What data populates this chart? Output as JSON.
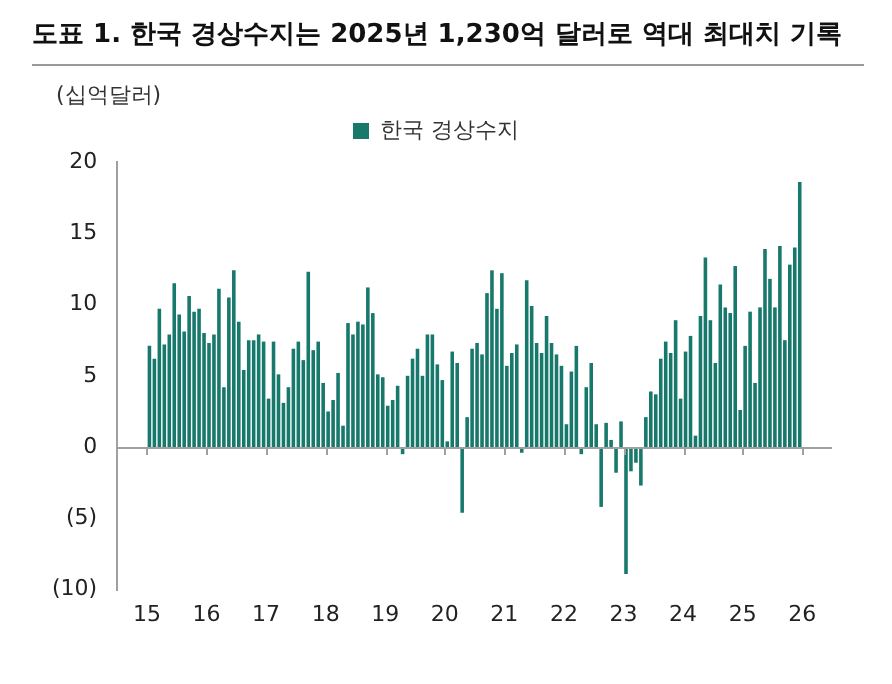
{
  "chart_data": {
    "type": "bar",
    "title": "도표 1. 한국 경상수지는 2025년 1,230억 달러로 역대 최대치 기록",
    "ylabel": "(십억달러)",
    "x": [
      "2015-01",
      "2015-02",
      "2015-03",
      "2015-04",
      "2015-05",
      "2015-06",
      "2015-07",
      "2015-08",
      "2015-09",
      "2015-10",
      "2015-11",
      "2015-12",
      "2016-01",
      "2016-02",
      "2016-03",
      "2016-04",
      "2016-05",
      "2016-06",
      "2016-07",
      "2016-08",
      "2016-09",
      "2016-10",
      "2016-11",
      "2016-12",
      "2017-01",
      "2017-02",
      "2017-03",
      "2017-04",
      "2017-05",
      "2017-06",
      "2017-07",
      "2017-08",
      "2017-09",
      "2017-10",
      "2017-11",
      "2017-12",
      "2018-01",
      "2018-02",
      "2018-03",
      "2018-04",
      "2018-05",
      "2018-06",
      "2018-07",
      "2018-08",
      "2018-09",
      "2018-10",
      "2018-11",
      "2018-12",
      "2019-01",
      "2019-02",
      "2019-03",
      "2019-04",
      "2019-05",
      "2019-06",
      "2019-07",
      "2019-08",
      "2019-09",
      "2019-10",
      "2019-11",
      "2019-12",
      "2020-01",
      "2020-02",
      "2020-03",
      "2020-04",
      "2020-05",
      "2020-06",
      "2020-07",
      "2020-08",
      "2020-09",
      "2020-10",
      "2020-11",
      "2020-12",
      "2021-01",
      "2021-02",
      "2021-03",
      "2021-04",
      "2021-05",
      "2021-06",
      "2021-07",
      "2021-08",
      "2021-09",
      "2021-10",
      "2021-11",
      "2021-12",
      "2022-01",
      "2022-02",
      "2022-03",
      "2022-04",
      "2022-05",
      "2022-06",
      "2022-07",
      "2022-08",
      "2022-09",
      "2022-10",
      "2022-11",
      "2022-12",
      "2023-01",
      "2023-02",
      "2023-03",
      "2023-04",
      "2023-05",
      "2023-06",
      "2023-07",
      "2023-08",
      "2023-09",
      "2023-10",
      "2023-11",
      "2023-12",
      "2024-01",
      "2024-02",
      "2024-03",
      "2024-04",
      "2024-05",
      "2024-06",
      "2024-07",
      "2024-08",
      "2024-09",
      "2024-10",
      "2024-11",
      "2024-12",
      "2025-01",
      "2025-02",
      "2025-03",
      "2025-04",
      "2025-05",
      "2025-06",
      "2025-07",
      "2025-08",
      "2025-09",
      "2025-10",
      "2025-11",
      "2025-12"
    ],
    "series": [
      {
        "name": "한국 경상수지",
        "color": "#17786c",
        "values": [
          7.1,
          6.2,
          9.7,
          7.2,
          7.9,
          11.5,
          9.3,
          8.1,
          10.6,
          9.5,
          9.7,
          8.0,
          7.3,
          7.9,
          11.1,
          4.2,
          10.5,
          12.4,
          8.8,
          5.4,
          7.5,
          7.5,
          7.9,
          7.4,
          3.4,
          7.4,
          5.1,
          3.1,
          4.2,
          6.9,
          7.4,
          6.1,
          12.3,
          6.8,
          7.4,
          4.5,
          2.5,
          3.3,
          5.2,
          1.5,
          8.7,
          7.9,
          8.8,
          8.6,
          11.2,
          9.4,
          5.1,
          4.9,
          2.9,
          3.3,
          4.3,
          -0.5,
          5.0,
          6.2,
          6.9,
          5.0,
          7.9,
          7.9,
          5.8,
          4.7,
          0.4,
          6.7,
          5.9,
          -4.6,
          2.1,
          6.9,
          7.3,
          6.5,
          10.8,
          12.4,
          9.7,
          12.2,
          5.7,
          6.6,
          7.2,
          -0.4,
          11.7,
          9.9,
          7.3,
          6.6,
          9.2,
          7.3,
          6.5,
          5.7,
          1.6,
          5.3,
          7.1,
          -0.5,
          4.2,
          5.9,
          1.6,
          -4.2,
          1.7,
          0.5,
          -1.8,
          1.8,
          -8.9,
          -1.7,
          -1.1,
          -2.7,
          2.1,
          3.9,
          3.7,
          6.2,
          7.4,
          6.6,
          8.9,
          3.4,
          6.7,
          7.8,
          0.8,
          9.2,
          13.3,
          8.9,
          5.9,
          11.4,
          9.8,
          9.4,
          12.7,
          2.6,
          7.1,
          9.5,
          4.5,
          9.8,
          13.9,
          11.8,
          9.8,
          14.1,
          7.5,
          12.8,
          14.0,
          18.6
        ]
      }
    ],
    "xlim": [
      "2015-01",
      "2026-01"
    ],
    "xticks": [
      {
        "value": "2015",
        "label": "15"
      },
      {
        "value": "2016",
        "label": "16"
      },
      {
        "value": "2017",
        "label": "17"
      },
      {
        "value": "2018",
        "label": "18"
      },
      {
        "value": "2019",
        "label": "19"
      },
      {
        "value": "2020",
        "label": "20"
      },
      {
        "value": "2021",
        "label": "21"
      },
      {
        "value": "2022",
        "label": "22"
      },
      {
        "value": "2023",
        "label": "23"
      },
      {
        "value": "2024",
        "label": "24"
      },
      {
        "value": "2025",
        "label": "25"
      },
      {
        "value": "2026",
        "label": "26"
      }
    ],
    "ylim": [
      -10,
      20
    ],
    "yticks": [
      {
        "value": -10,
        "label": "(10)"
      },
      {
        "value": -5,
        "label": "(5)"
      },
      0,
      5,
      10,
      15,
      20
    ],
    "legend": "top"
  }
}
